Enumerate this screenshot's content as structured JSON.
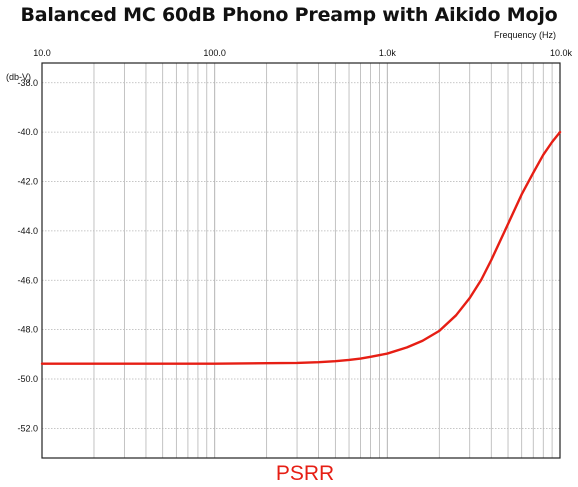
{
  "chart_data": {
    "type": "line",
    "title": "Balanced MC 60dB Phono Preamp with Aikido Mojo",
    "xlabel": "Frequency  (Hz)",
    "ylabel": "(db-V)",
    "x_scale": "log",
    "xlim": [
      10,
      10000
    ],
    "ylim": [
      -53.2,
      -37.2
    ],
    "x_ticks": [
      10,
      100,
      1000,
      10000
    ],
    "x_tick_labels": [
      "10.0",
      "100.0",
      "1.0k",
      "10.0k"
    ],
    "y_ticks": [
      -38,
      -40,
      -42,
      -44,
      -46,
      -48,
      -50,
      -52
    ],
    "y_tick_labels": [
      "-38.0",
      "-40.0",
      "-42.0",
      "-44.0",
      "-46.0",
      "-48.0",
      "-50.0",
      "-52.0"
    ],
    "grid": true,
    "annotation": "PSRR",
    "colors": {
      "series": "#e61e14",
      "grid": "#b4b4b4",
      "axis": "#222222"
    },
    "series": [
      {
        "x": [
          10,
          50,
          100,
          200,
          300,
          400,
          500,
          600,
          700,
          800,
          1000,
          1300,
          1600,
          2000,
          2500,
          3000,
          3500,
          4000,
          5000,
          6000,
          7000,
          8000,
          9000,
          10000
        ],
        "y": [
          -49.38,
          -49.38,
          -49.38,
          -49.36,
          -49.35,
          -49.32,
          -49.28,
          -49.23,
          -49.17,
          -49.1,
          -48.97,
          -48.72,
          -48.45,
          -48.05,
          -47.42,
          -46.72,
          -45.98,
          -45.18,
          -43.72,
          -42.52,
          -41.65,
          -40.92,
          -40.4,
          -40.0
        ]
      }
    ]
  }
}
